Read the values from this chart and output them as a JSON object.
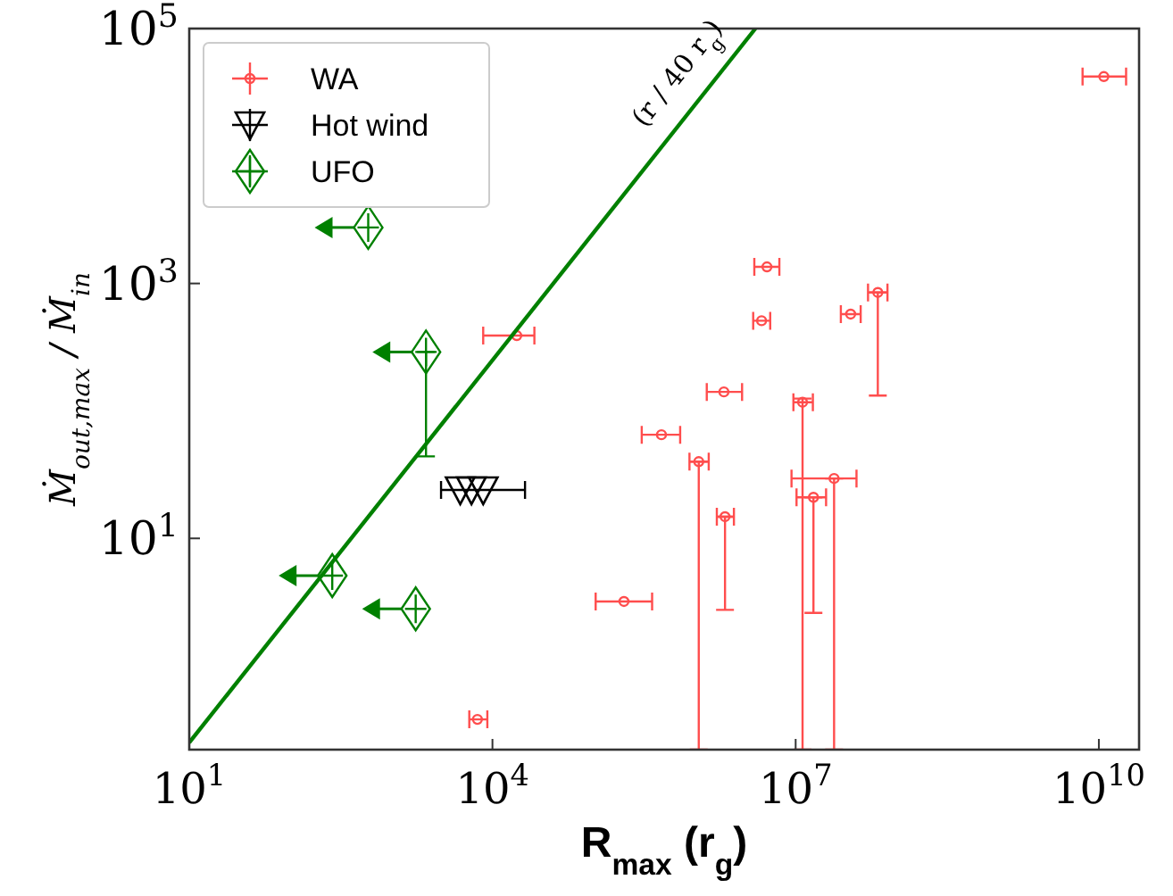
{
  "chart_data": {
    "type": "scatter",
    "xlabel": "R$_{max}$ (r$_{g}$)",
    "ylabel": "Ṁ$_{out,max}$ / Ṁ$_{in}$",
    "log": "xy",
    "xlim": [
      10,
      25000000000
    ],
    "ylim": [
      0.22,
      100000
    ],
    "xticks": [
      {
        "value": 10,
        "label": "10$^{1}$"
      },
      {
        "value": 10000,
        "label": "10$^{4}$"
      },
      {
        "value": 10000000,
        "label": "10$^{7}$"
      },
      {
        "value": 10000000000,
        "label": "10$^{10}$"
      }
    ],
    "yticks": [
      {
        "value": 10,
        "label": "10$^{1}$"
      },
      {
        "value": 1000,
        "label": "10$^{3}$"
      },
      {
        "value": 100000,
        "label": "10$^{5}$"
      }
    ],
    "grid": false,
    "legend": "top left",
    "annotations": [
      "(r / 40 r$_{g}$)"
    ],
    "series": [
      {
        "name": "WA",
        "color": "#ff4d4d",
        "marker": "circle",
        "x": [
          5200000,
          4600000,
          35000000,
          65000000,
          1950000,
          11700000,
          470000,
          1100000,
          24000000,
          15000000,
          2000000,
          200000,
          17400,
          7100,
          11200000000
        ],
        "values": [
          1350,
          510,
          575,
          850,
          141,
          117,
          65,
          40,
          29.5,
          21,
          14.8,
          3.2,
          390,
          0.38,
          42000
        ],
        "xerrors": [
          [
            3900000,
            6900000
          ],
          [
            3800000,
            5600000
          ],
          [
            28000000,
            44000000
          ],
          [
            52000000,
            81000000
          ],
          [
            1320000,
            2950000
          ],
          [
            9500000,
            14800000
          ],
          [
            300000,
            720000
          ],
          [
            890000,
            1380000
          ],
          [
            9100000,
            40000000
          ],
          [
            10200000,
            20000000
          ],
          [
            1660000,
            2450000
          ],
          [
            105000,
            380000
          ],
          [
            8100,
            26000
          ],
          [
            5900,
            8900
          ],
          [
            6900000000,
            18600000000
          ]
        ],
        "errors": [
          null,
          null,
          null,
          [
            132,
            850
          ],
          null,
          [
            0.22,
            125
          ],
          null,
          [
            0.22,
            40
          ],
          [
            0.22,
            29.5
          ],
          [
            2.6,
            21
          ],
          [
            2.75,
            14.8
          ],
          null,
          null,
          null,
          null
        ]
      },
      {
        "name": "Hot wind",
        "color": "#000000",
        "marker": "triangle",
        "x": [
          4800,
          6200,
          8100
        ],
        "values": [
          24,
          24,
          24
        ],
        "xerrors": [
          null,
          [
            3100,
            21000
          ],
          null
        ]
      },
      {
        "name": "UFO",
        "color": "#008000",
        "marker": "diamond",
        "x": [
          590,
          2200,
          260,
          1740
        ],
        "values": [
          2750,
          290,
          5.1,
          2.8
        ],
        "errors": [
          null,
          [
            44,
            290
          ],
          null,
          null
        ]
      },
      {
        "type": "line",
        "color": "#008000",
        "x": [
          10,
          4000000
        ],
        "values": [
          0.25,
          100000
        ]
      }
    ]
  }
}
